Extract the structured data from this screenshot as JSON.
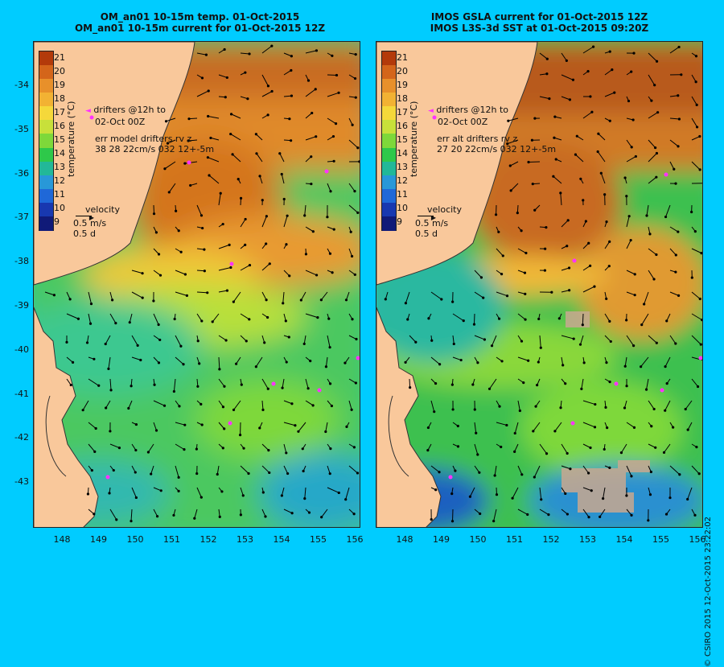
{
  "left_panel": {
    "title_line1": "OM_an01 10-15m temp. 01-Oct-2015",
    "title_line2": "OM_an01 10-15m current for 01-Oct-2015 12Z",
    "drifter_note_line1": "drifters @12h to",
    "drifter_note_line2": "02-Oct 00Z",
    "err_line1": "err model drifters rv z",
    "err_line2": "38 28 22cm/s 032 12+-5m",
    "velocity_label": "velocity",
    "velocity_scale": "0.5 m/s",
    "velocity_time": "0.5 d"
  },
  "right_panel": {
    "title_line1": "IMOS GSLA current for 01-Oct-2015 12Z",
    "title_line2": "IMOS L3S-3d SST at 01-Oct-2015 09:20Z",
    "drifter_note_line1": "drifters @12h to",
    "drifter_note_line2": "02-Oct 00Z",
    "err_line1": "err alt drifters rv z",
    "err_line2": "27 20 22cm/s 032 12+-5m",
    "velocity_label": "velocity",
    "velocity_scale": "0.5 m/s",
    "velocity_time": "0.5 d"
  },
  "colorbar": {
    "title": "temperature (°C)",
    "ticks": [
      "21",
      "20",
      "19",
      "18",
      "17",
      "16",
      "15",
      "14",
      "13",
      "12",
      "11",
      "10",
      "9"
    ],
    "colors": [
      "#b33a0a",
      "#d4651a",
      "#e8902a",
      "#f2b233",
      "#f5d83a",
      "#c8e03a",
      "#7ed83a",
      "#2ec84a",
      "#22b898",
      "#2898d8",
      "#1f68d8",
      "#1838b0",
      "#101a78"
    ]
  },
  "axes": {
    "y_ticks": [
      "-34",
      "-35",
      "-36",
      "-37",
      "-38",
      "-39",
      "-40",
      "-41",
      "-42",
      "-43"
    ],
    "x_ticks": [
      "148",
      "149",
      "150",
      "151",
      "152",
      "153",
      "154",
      "155",
      "156"
    ]
  },
  "credit": "© CSIRO 2015   12-Oct-2015 23:22:02",
  "colors": {
    "background": "#00ccff",
    "land": "#f9c89b",
    "drifter": "#ff33ff",
    "arrow": "#000000"
  }
}
